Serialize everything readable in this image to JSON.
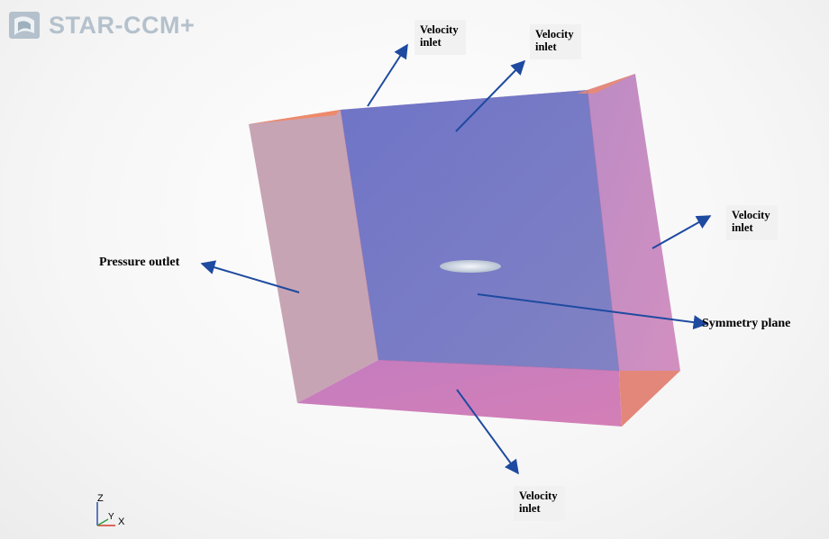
{
  "app": {
    "logo_text": "STAR-CCM+",
    "logo_icon": "star-ccm-logo-icon"
  },
  "labels": {
    "velocity_inlet_top_left": "Velocity\ninlet",
    "velocity_inlet_top_center": "Velocity\ninlet",
    "velocity_inlet_right": "Velocity\ninlet",
    "velocity_inlet_bottom": "Velocity\ninlet",
    "pressure_outlet": "Pressure outlet",
    "symmetry_plane": "Symmetry plane"
  },
  "axes": {
    "z": "Z",
    "y": "Y",
    "x": "X"
  },
  "colors": {
    "face_front_blue": "#7c80c8",
    "face_left": "#c6a2b2",
    "face_right": "#c888bf",
    "face_bottom": "#c97cbe",
    "edge_orange": "#ee8a6a",
    "arrow": "#1e4aa0",
    "logo": "#b4c1cc"
  }
}
